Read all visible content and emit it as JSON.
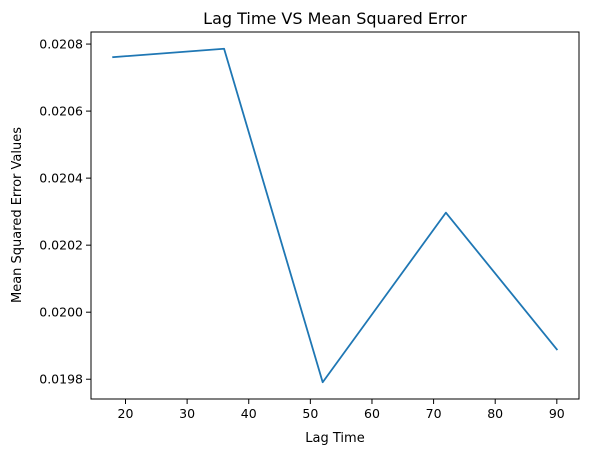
{
  "chart_data": {
    "type": "line",
    "title": "Lag Time VS Mean Squared Error",
    "xlabel": "Lag Time",
    "ylabel": "Mean Squared Error Values",
    "x": [
      18,
      36,
      52,
      72,
      90
    ],
    "series": [
      {
        "values": [
          0.020761,
          0.020786,
          0.019791,
          0.020297,
          0.019889
        ]
      }
    ],
    "xlim": [
      14.4,
      93.6
    ],
    "ylim": [
      0.019741,
      0.020836
    ],
    "xticks": [
      20,
      30,
      40,
      50,
      60,
      70,
      80,
      90
    ],
    "xtick_labels": [
      "20",
      "30",
      "40",
      "50",
      "60",
      "70",
      "80",
      "90"
    ],
    "yticks": [
      0.0198,
      0.02,
      0.0202,
      0.0204,
      0.0206,
      0.0208
    ],
    "ytick_labels": [
      "0.0198",
      "0.0200",
      "0.0202",
      "0.0204",
      "0.0206",
      "0.0208"
    ],
    "line_color": "#1f77b4",
    "grid": false,
    "legend": false
  }
}
